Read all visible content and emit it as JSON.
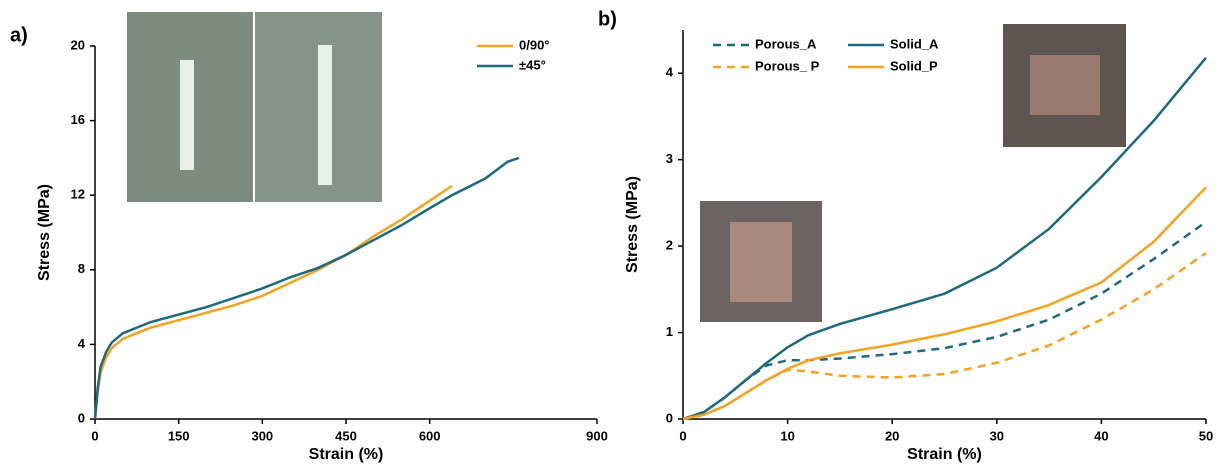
{
  "chart_data": [
    {
      "type": "line",
      "panel_label": "a)",
      "x_label": "Strain (%)",
      "y_label": "Stress (MPa)",
      "x": [
        0,
        5,
        10,
        20,
        30,
        50,
        75,
        100,
        150,
        200,
        250,
        300,
        350,
        400,
        450,
        500,
        550,
        600,
        640,
        700,
        740,
        760
      ],
      "series": [
        {
          "name": "0/90°",
          "color": "#f5a21f",
          "dash": false,
          "values": [
            0,
            1.5,
            2.5,
            3.3,
            3.8,
            4.3,
            4.6,
            4.9,
            5.3,
            5.7,
            6.1,
            6.6,
            7.3,
            8.0,
            8.8,
            9.8,
            10.7,
            11.7,
            12.5,
            null,
            null,
            null
          ]
        },
        {
          "name": "±45°",
          "color": "#1b6a80",
          "dash": false,
          "values": [
            0,
            1.7,
            2.8,
            3.6,
            4.1,
            4.6,
            4.9,
            5.2,
            5.6,
            6.0,
            6.5,
            7.0,
            7.6,
            8.1,
            8.8,
            9.6,
            10.4,
            11.3,
            12.0,
            12.9,
            13.8,
            14.0
          ]
        }
      ],
      "xlim": [
        0,
        900
      ],
      "xticks": [
        0,
        150,
        300,
        450,
        600,
        900
      ],
      "ylim": [
        0,
        20
      ],
      "yticks": [
        0,
        4,
        8,
        12,
        16,
        20
      ],
      "legend": "top-right"
    },
    {
      "type": "line",
      "panel_label": "b)",
      "x_label": "Strain (%)",
      "y_label": "Stress (MPa)",
      "x": [
        0,
        2,
        4,
        6,
        8,
        10,
        12,
        15,
        20,
        25,
        30,
        35,
        40,
        45,
        50
      ],
      "series": [
        {
          "name": "Porous_A",
          "color": "#1b6a80",
          "dash": true,
          "values": [
            0,
            0.08,
            0.25,
            0.45,
            0.62,
            0.68,
            0.68,
            0.7,
            0.75,
            0.82,
            0.95,
            1.15,
            1.45,
            1.85,
            2.28
          ]
        },
        {
          "name": "Porous_ P",
          "color": "#f5a21f",
          "dash": true,
          "values": [
            0,
            0.05,
            0.15,
            0.3,
            0.45,
            0.57,
            0.55,
            0.5,
            0.48,
            0.52,
            0.65,
            0.85,
            1.15,
            1.5,
            1.92
          ]
        },
        {
          "name": "Solid_A",
          "color": "#1b6a80",
          "dash": false,
          "values": [
            0,
            0.08,
            0.25,
            0.45,
            0.65,
            0.83,
            0.97,
            1.1,
            1.27,
            1.45,
            1.75,
            2.2,
            2.8,
            3.45,
            4.18
          ]
        },
        {
          "name": "Solid_P",
          "color": "#f5a21f",
          "dash": false,
          "values": [
            0,
            0.05,
            0.15,
            0.3,
            0.45,
            0.58,
            0.68,
            0.76,
            0.86,
            0.98,
            1.13,
            1.32,
            1.58,
            2.05,
            2.68
          ]
        }
      ],
      "xlim": [
        0,
        50
      ],
      "xticks": [
        0,
        10,
        20,
        30,
        40,
        50
      ],
      "ylim": [
        0,
        4.5
      ],
      "yticks": [
        0,
        1,
        2,
        3,
        4
      ],
      "legend": "top-left"
    }
  ]
}
